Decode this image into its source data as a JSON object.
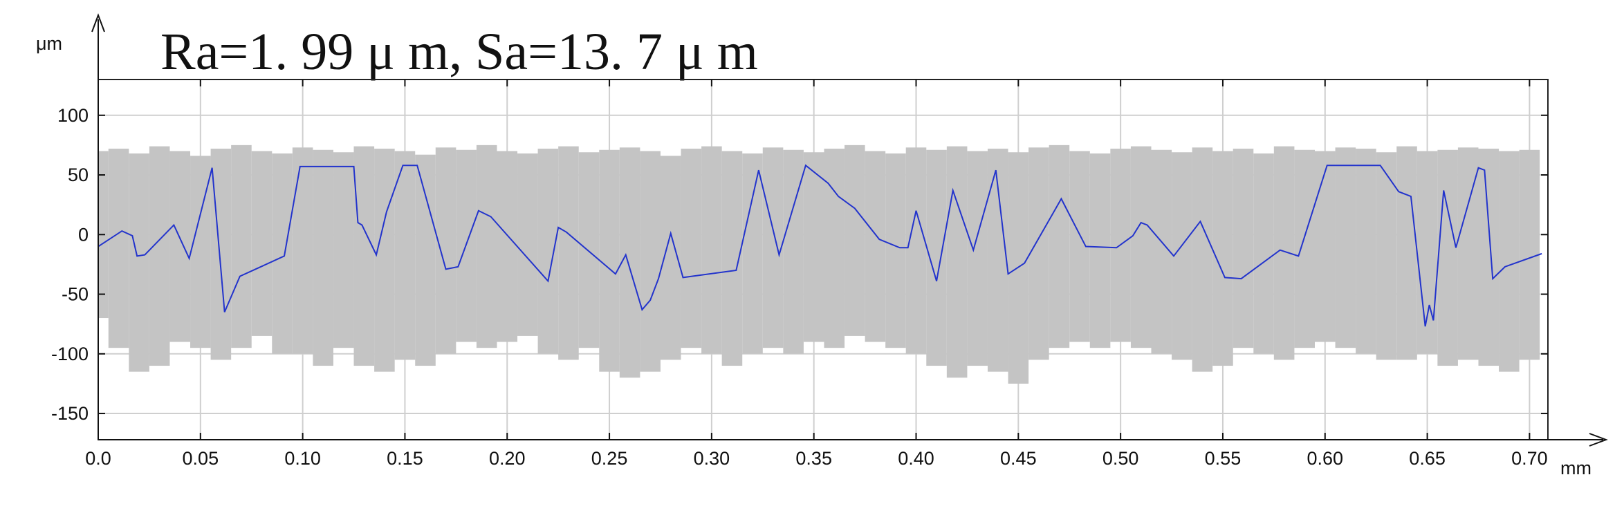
{
  "chart_data": {
    "type": "line",
    "title": "Ra=1. 99 μ m, Sa=13. 7 μ m",
    "y_label": "μm",
    "x_label": "mm",
    "xlim": [
      0,
      0.709
    ],
    "ylim": [
      -172,
      130
    ],
    "xticks": [
      {
        "value": 0,
        "label": "0.0"
      },
      0.05,
      {
        "value": 0.1,
        "label": "0.10"
      },
      0.15,
      {
        "value": 0.2,
        "label": "0.20"
      },
      0.25,
      {
        "value": 0.3,
        "label": "0.30"
      },
      0.35,
      {
        "value": 0.4,
        "label": "0.40"
      },
      0.45,
      {
        "value": 0.5,
        "label": "0.50"
      },
      0.55,
      {
        "value": 0.6,
        "label": "0.60"
      },
      0.65,
      {
        "value": 0.7,
        "label": "0.70"
      }
    ],
    "yticks": [
      -150,
      -100,
      -50,
      0,
      50,
      100
    ],
    "grid": true,
    "band": {
      "color": "#c4c4c4",
      "x": [
        0,
        0.01,
        0.02,
        0.03,
        0.04,
        0.05,
        0.06,
        0.07,
        0.08,
        0.09,
        0.1,
        0.11,
        0.12,
        0.13,
        0.14,
        0.15,
        0.16,
        0.17,
        0.18,
        0.19,
        0.2,
        0.21,
        0.22,
        0.23,
        0.24,
        0.25,
        0.26,
        0.27,
        0.28,
        0.29,
        0.3,
        0.31,
        0.32,
        0.33,
        0.34,
        0.35,
        0.36,
        0.37,
        0.38,
        0.39,
        0.4,
        0.41,
        0.42,
        0.43,
        0.44,
        0.45,
        0.46,
        0.47,
        0.48,
        0.49,
        0.5,
        0.51,
        0.52,
        0.53,
        0.54,
        0.55,
        0.56,
        0.57,
        0.58,
        0.59,
        0.6,
        0.61,
        0.62,
        0.63,
        0.64,
        0.65,
        0.66,
        0.67,
        0.68,
        0.69,
        0.7
      ],
      "upper": [
        70,
        72,
        68,
        74,
        70,
        66,
        72,
        75,
        70,
        68,
        73,
        71,
        69,
        74,
        72,
        70,
        67,
        73,
        71,
        75,
        70,
        68,
        72,
        74,
        69,
        71,
        73,
        70,
        66,
        72,
        74,
        70,
        68,
        73,
        71,
        69,
        72,
        75,
        70,
        68,
        73,
        71,
        74,
        70,
        72,
        69,
        73,
        75,
        70,
        68,
        72,
        74,
        71,
        69,
        73,
        70,
        72,
        68,
        74,
        71,
        70,
        73,
        72,
        69,
        74,
        70,
        71,
        73,
        72,
        70,
        71
      ],
      "lower": [
        -70,
        -95,
        -115,
        -110,
        -90,
        -95,
        -105,
        -95,
        -85,
        -100,
        -100,
        -110,
        -95,
        -110,
        -115,
        -105,
        -110,
        -100,
        -90,
        -95,
        -90,
        -85,
        -100,
        -105,
        -95,
        -115,
        -120,
        -115,
        -105,
        -95,
        -100,
        -110,
        -100,
        -95,
        -100,
        -90,
        -95,
        -85,
        -90,
        -95,
        -100,
        -110,
        -120,
        -110,
        -115,
        -125,
        -105,
        -95,
        -90,
        -95,
        -90,
        -95,
        -100,
        -105,
        -115,
        -110,
        -95,
        -100,
        -105,
        -95,
        -90,
        -95,
        -100,
        -105,
        -105,
        -100,
        -110,
        -105,
        -110,
        -115,
        -105
      ]
    },
    "series": [
      {
        "color": "#2233cc",
        "x": [
          0,
          0.0116,
          0.0167,
          0.019,
          0.0228,
          0.037,
          0.0445,
          0.0557,
          0.0618,
          0.0693,
          0.091,
          0.0987,
          0.125,
          0.127,
          0.129,
          0.136,
          0.141,
          0.149,
          0.156,
          0.17,
          0.176,
          0.186,
          0.192,
          0.22,
          0.225,
          0.229,
          0.253,
          0.258,
          0.266,
          0.27,
          0.274,
          0.28,
          0.286,
          0.312,
          0.323,
          0.333,
          0.346,
          0.357,
          0.362,
          0.37,
          0.382,
          0.392,
          0.396,
          0.4,
          0.41,
          0.418,
          0.428,
          0.439,
          0.445,
          0.453,
          0.471,
          0.483,
          0.498,
          0.506,
          0.51,
          0.513,
          0.526,
          0.539,
          0.551,
          0.559,
          0.578,
          0.587,
          0.601,
          0.627,
          0.636,
          0.642,
          0.649,
          0.651,
          0.653,
          0.658,
          0.664,
          0.675,
          0.678,
          0.682,
          0.688,
          0.706
        ],
        "values": [
          -10,
          3,
          -1,
          -18,
          -17,
          8,
          -20,
          56,
          -65,
          -35,
          -18,
          57,
          57,
          10,
          8,
          -17,
          19,
          58,
          58,
          -29,
          -27,
          20,
          15,
          -39,
          6,
          2,
          -33,
          -17,
          -63,
          -55,
          -37,
          1,
          -36,
          -30,
          54,
          -17,
          58,
          43,
          32,
          22,
          -4,
          -11,
          -11,
          20,
          -39,
          37,
          -13,
          54,
          -33,
          -24,
          30,
          -10,
          -11,
          -1,
          10,
          8,
          -18,
          11,
          -36,
          -37,
          -13,
          -18,
          58,
          58,
          36,
          32,
          -77,
          -59,
          -72,
          37,
          -11,
          56,
          54,
          -37,
          -27,
          -16
        ]
      }
    ]
  }
}
